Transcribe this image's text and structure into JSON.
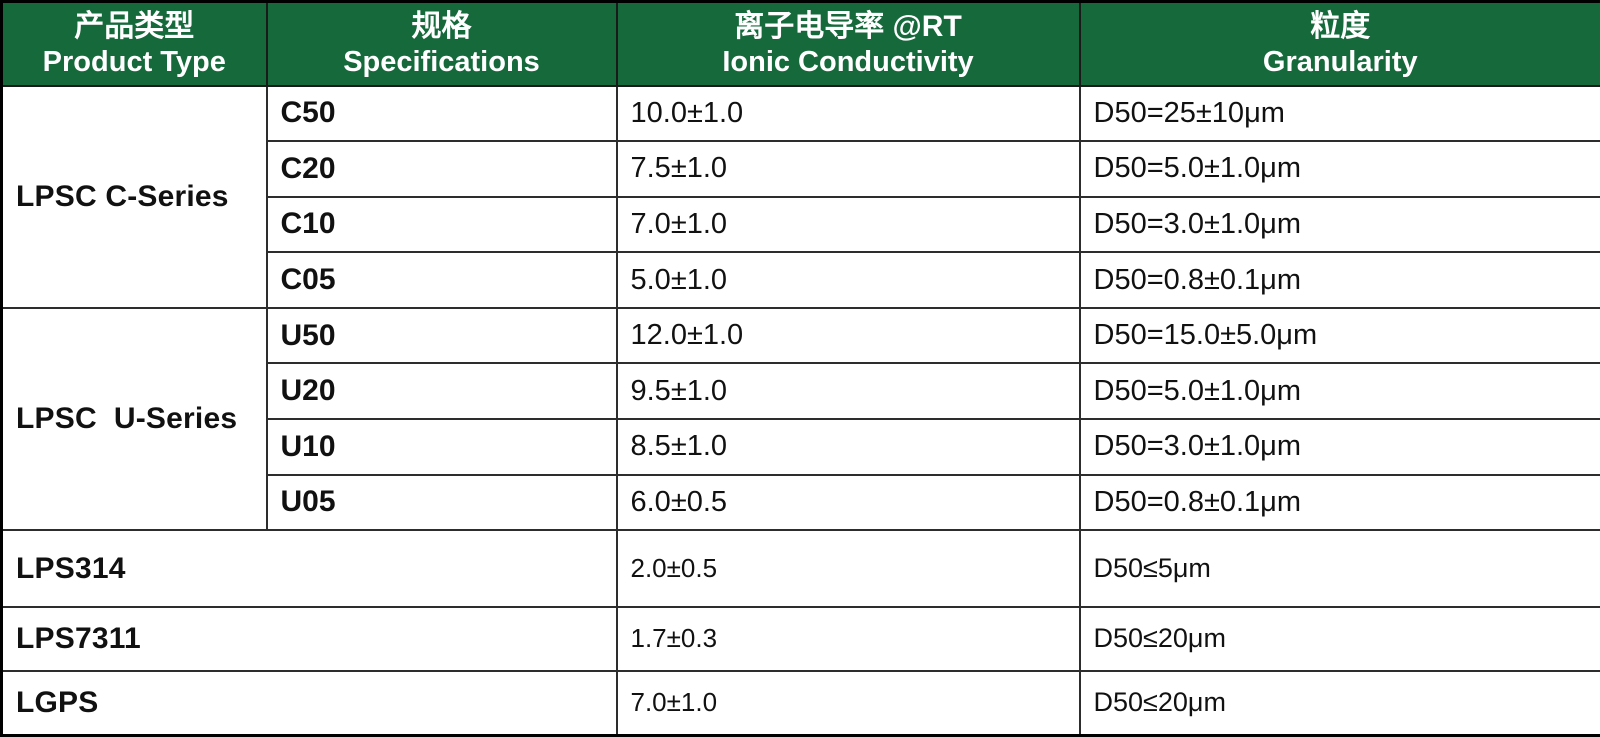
{
  "chart_data": {
    "type": "table",
    "columns": [
      {
        "zh": "产品类型",
        "en": "Product Type"
      },
      {
        "zh": "规格",
        "en": "Specifications"
      },
      {
        "zh": "离子电导率 @RT",
        "en": "Ionic Conductivity"
      },
      {
        "zh": "粒度",
        "en": "Granularity"
      }
    ],
    "rows": [
      [
        "LPSC C-Series",
        "C50",
        "10.0±1.0",
        "D50=25±10μm"
      ],
      [
        "LPSC C-Series",
        "C20",
        "7.5±1.0",
        "D50=5.0±1.0μm"
      ],
      [
        "LPSC C-Series",
        "C10",
        "7.0±1.0",
        "D50=3.0±1.0μm"
      ],
      [
        "LPSC C-Series",
        "C05",
        "5.0±1.0",
        "D50=0.8±0.1μm"
      ],
      [
        "LPSC U-Series",
        "U50",
        "12.0±1.0",
        "D50=15.0±5.0μm"
      ],
      [
        "LPSC U-Series",
        "U20",
        "9.5±1.0",
        "D50=5.0±1.0μm"
      ],
      [
        "LPSC U-Series",
        "U10",
        "8.5±1.0",
        "D50=3.0±1.0μm"
      ],
      [
        "LPSC U-Series",
        "U05",
        "6.0±0.5",
        "D50=0.8±0.1μm"
      ],
      [
        "LPS314",
        "",
        "2.0±0.5",
        "D50≤5μm"
      ],
      [
        "LPS7311",
        "",
        "1.7±0.3",
        "D50≤20μm"
      ],
      [
        "LGPS",
        "",
        "7.0±1.0",
        "D50≤20μm"
      ]
    ]
  },
  "table": {
    "columns": [
      {
        "zh": "产品类型",
        "en": "Product Type"
      },
      {
        "zh": "规格",
        "en": "Specifications"
      },
      {
        "zh": "离子电导率 @RT",
        "en": "Ionic Conductivity"
      },
      {
        "zh": "粒度",
        "en": "Granularity"
      }
    ],
    "groups": [
      {
        "product": "LPSC C-Series",
        "rows": [
          {
            "spec": "C50",
            "conductivity": "10.0±1.0",
            "granularity": "D50=25±10μm"
          },
          {
            "spec": "C20",
            "conductivity": "7.5±1.0",
            "granularity": "D50=5.0±1.0μm"
          },
          {
            "spec": "C10",
            "conductivity": "7.0±1.0",
            "granularity": "D50=3.0±1.0μm"
          },
          {
            "spec": "C05",
            "conductivity": "5.0±1.0",
            "granularity": "D50=0.8±0.1μm"
          }
        ]
      },
      {
        "product": "LPSC  U-Series",
        "rows": [
          {
            "spec": "U50",
            "conductivity": "12.0±1.0",
            "granularity": "D50=15.0±5.0μm"
          },
          {
            "spec": "U20",
            "conductivity": "9.5±1.0",
            "granularity": "D50=5.0±1.0μm"
          },
          {
            "spec": "U10",
            "conductivity": "8.5±1.0",
            "granularity": "D50=3.0±1.0μm"
          },
          {
            "spec": "U05",
            "conductivity": "6.0±0.5",
            "granularity": "D50=0.8±0.1μm"
          }
        ]
      }
    ],
    "singles": [
      {
        "product": "LPS314",
        "conductivity": "2.0±0.5",
        "granularity": "D50≤5μm"
      },
      {
        "product": "LPS7311",
        "conductivity": "1.7±0.3",
        "granularity": "D50≤20μm"
      },
      {
        "product": "LGPS",
        "conductivity": "7.0±1.0",
        "granularity": "D50≤20μm"
      }
    ]
  },
  "colors": {
    "header_bg": "#15693B",
    "header_text": "#FFFFFF",
    "body_text": "#111111",
    "border": "#2D2D2D"
  }
}
